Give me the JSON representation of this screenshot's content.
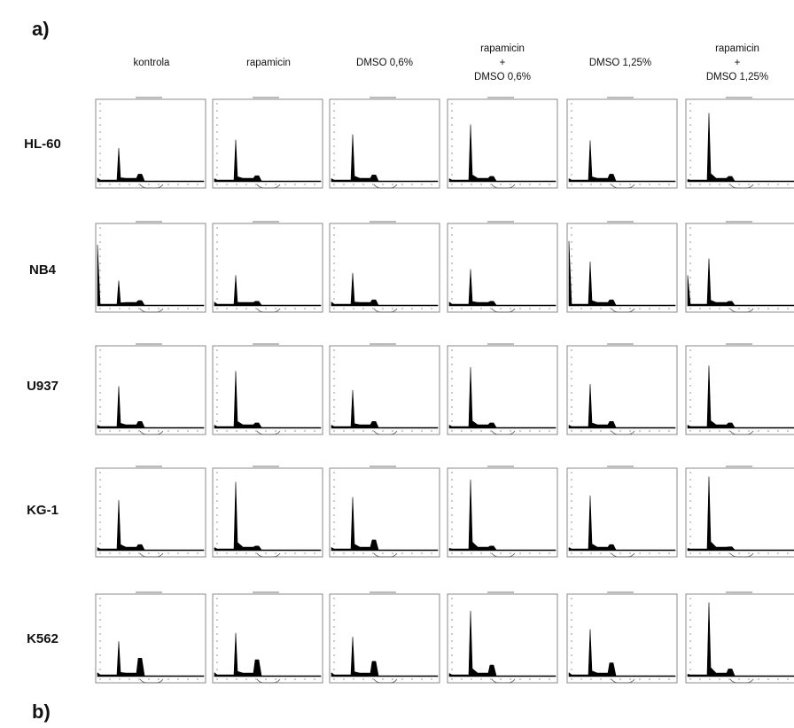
{
  "panel_labels": {
    "a": "a)",
    "b": "b)"
  },
  "columns": [
    "kontrola",
    "rapamicin",
    "DMSO 0,6%",
    "rapamicin\n+\nDMSO 0,6%",
    "DMSO 1,25%",
    "rapamicin\n+\nDMSO 1,25%"
  ],
  "rows": [
    "HL-60",
    "NB4",
    "U937",
    "KG-1",
    "K562"
  ],
  "histograms": [
    [
      {
        "g1": 0.44,
        "g2": 0.1,
        "early": 0.05
      },
      {
        "g1": 0.55,
        "g2": 0.08,
        "early": 0.04
      },
      {
        "g1": 0.62,
        "g2": 0.09,
        "early": 0.04
      },
      {
        "g1": 0.75,
        "g2": 0.07,
        "early": 0.04
      },
      {
        "g1": 0.54,
        "g2": 0.1,
        "early": 0.04
      },
      {
        "g1": 0.9,
        "g2": 0.07,
        "early": 0.03
      }
    ],
    [
      {
        "g1": 0.33,
        "g2": 0.07,
        "early": 0.8
      },
      {
        "g1": 0.4,
        "g2": 0.06,
        "early": 0.05
      },
      {
        "g1": 0.43,
        "g2": 0.08,
        "early": 0.05
      },
      {
        "g1": 0.48,
        "g2": 0.06,
        "early": 0.05
      },
      {
        "g1": 0.58,
        "g2": 0.08,
        "early": 0.85
      },
      {
        "g1": 0.62,
        "g2": 0.06,
        "early": 0.4
      }
    ],
    [
      {
        "g1": 0.55,
        "g2": 0.09,
        "early": 0.04
      },
      {
        "g1": 0.75,
        "g2": 0.07,
        "early": 0.04
      },
      {
        "g1": 0.5,
        "g2": 0.09,
        "early": 0.04
      },
      {
        "g1": 0.8,
        "g2": 0.07,
        "early": 0.04
      },
      {
        "g1": 0.58,
        "g2": 0.09,
        "early": 0.04
      },
      {
        "g1": 0.82,
        "g2": 0.07,
        "early": 0.04
      }
    ],
    [
      {
        "g1": 0.66,
        "g2": 0.08,
        "early": 0.04
      },
      {
        "g1": 0.9,
        "g2": 0.06,
        "early": 0.04
      },
      {
        "g1": 0.7,
        "g2": 0.14,
        "early": 0.04
      },
      {
        "g1": 0.93,
        "g2": 0.06,
        "early": 0.03
      },
      {
        "g1": 0.72,
        "g2": 0.08,
        "early": 0.04
      },
      {
        "g1": 0.97,
        "g2": 0.05,
        "early": 0.03
      }
    ],
    [
      {
        "g1": 0.46,
        "g2": 0.24,
        "early": 0.05
      },
      {
        "g1": 0.57,
        "g2": 0.22,
        "early": 0.05
      },
      {
        "g1": 0.52,
        "g2": 0.2,
        "early": 0.05
      },
      {
        "g1": 0.86,
        "g2": 0.15,
        "early": 0.04
      },
      {
        "g1": 0.62,
        "g2": 0.18,
        "early": 0.05
      },
      {
        "g1": 0.97,
        "g2": 0.1,
        "early": 0.03
      }
    ]
  ]
}
